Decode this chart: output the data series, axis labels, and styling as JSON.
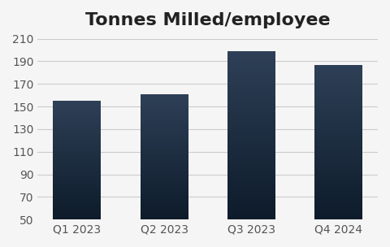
{
  "title": "Tonnes Milled/employee",
  "categories": [
    "Q1 2023",
    "Q2 2023",
    "Q3 2023",
    "Q4 2024"
  ],
  "values": [
    155,
    161,
    199,
    187
  ],
  "bar_color_top": "#2e4057",
  "bar_color_bottom": "#0d1b2a",
  "background_color": "#f5f5f5",
  "ylim": [
    50,
    210
  ],
  "yticks": [
    50,
    70,
    90,
    110,
    130,
    150,
    170,
    190,
    210
  ],
  "title_fontsize": 16,
  "tick_fontsize": 10,
  "grid_color": "#cccccc",
  "bar_width": 0.55
}
